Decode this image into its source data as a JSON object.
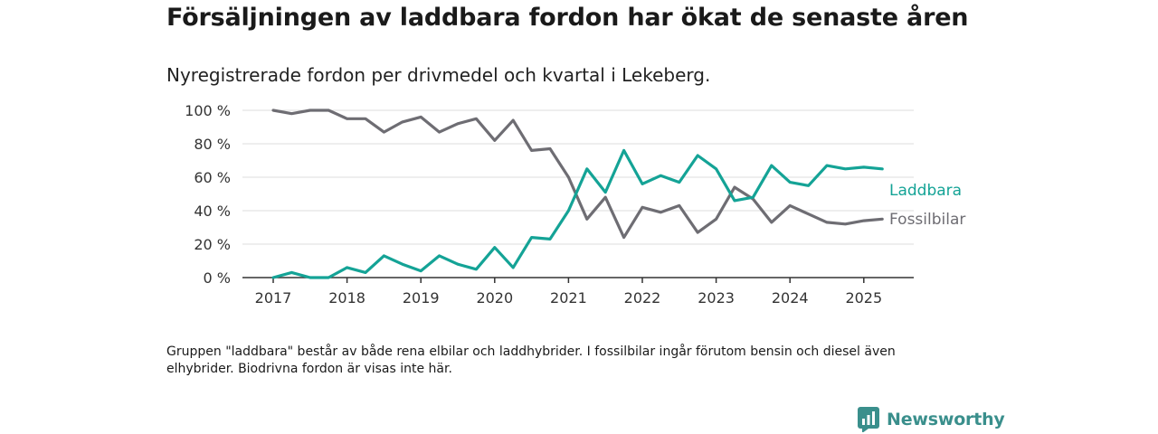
{
  "title": "Försäljningen av laddbara fordon har ökat de senaste åren",
  "subtitle": "Nyregistrerade fordon per drivmedel och kvartal i Lekeberg.",
  "footnote": "Gruppen \"laddbara\" består av både rena elbilar och laddhybrider. I fossilbilar ingår förutom bensin och diesel även elhybrider. Biodrivna fordon är visas inte här.",
  "brand": {
    "name": "Newsworthy",
    "icon": "newsworthy-logo-icon",
    "color": "#3a8f8c"
  },
  "colors": {
    "laddbara": "#14a396",
    "fossilbilar": "#6e6d73",
    "grid": "#dcdcdc",
    "axis": "#333333"
  },
  "chart_data": {
    "type": "line",
    "x": [
      "2017-Q1",
      "2017-Q2",
      "2017-Q3",
      "2017-Q4",
      "2018-Q1",
      "2018-Q2",
      "2018-Q3",
      "2018-Q4",
      "2019-Q1",
      "2019-Q2",
      "2019-Q3",
      "2019-Q4",
      "2020-Q1",
      "2020-Q2",
      "2020-Q3",
      "2020-Q4",
      "2021-Q1",
      "2021-Q2",
      "2021-Q3",
      "2021-Q4",
      "2022-Q1",
      "2022-Q2",
      "2022-Q3",
      "2022-Q4",
      "2023-Q1",
      "2023-Q2",
      "2023-Q3",
      "2023-Q4",
      "2024-Q1",
      "2024-Q2",
      "2024-Q3",
      "2024-Q4",
      "2025-Q1",
      "2025-Q2"
    ],
    "x_ticks": [
      "2017",
      "2018",
      "2019",
      "2020",
      "2021",
      "2022",
      "2023",
      "2024",
      "2025"
    ],
    "y_ticks": [
      "0 %",
      "20 %",
      "40 %",
      "60 %",
      "80 %",
      "100 %"
    ],
    "ylim": [
      0,
      100
    ],
    "grid": true,
    "legend_placement": "right, at line ends",
    "series": [
      {
        "name": "Laddbara",
        "color": "#14a396",
        "values": [
          0,
          3,
          0,
          0,
          6,
          3,
          13,
          8,
          4,
          13,
          8,
          5,
          18,
          6,
          24,
          23,
          40,
          65,
          51,
          76,
          56,
          61,
          57,
          73,
          65,
          46,
          48,
          67,
          57,
          55,
          67,
          65,
          66,
          65
        ]
      },
      {
        "name": "Fossilbilar",
        "color": "#6e6d73",
        "values": [
          100,
          98,
          100,
          100,
          95,
          95,
          87,
          93,
          96,
          87,
          92,
          95,
          82,
          94,
          76,
          77,
          60,
          35,
          48,
          24,
          42,
          39,
          43,
          27,
          35,
          54,
          47,
          33,
          43,
          38,
          33,
          32,
          34,
          35
        ]
      }
    ]
  }
}
